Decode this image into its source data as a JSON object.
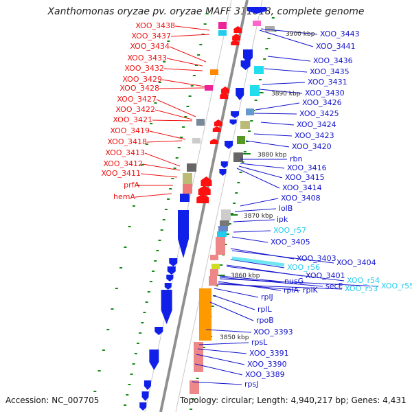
{
  "header": {
    "title": "Xanthomonas oryzae pv. oryzae MAFF 311018, complete genome"
  },
  "footer": {
    "accession": "Accession: NC_007705",
    "topology": "Topology: circular; Length: 4,940,217 bp; Genes: 4,431"
  },
  "colors": {
    "left_label": "#ee1111",
    "right_label": "#1111cc",
    "rna_label": "#22ccee",
    "gene_arrow_blue": "#1020e8",
    "gene_arrow_red": "#ff1010",
    "ticks": "#118811"
  },
  "scale_ticks": [
    "3900 kbp",
    "3890 kbp",
    "3880 kbp",
    "3870 kbp",
    "3860 kbp",
    "3850 kbp"
  ],
  "left_labels": [
    "XOO_3438",
    "XOO_3437",
    "XOO_3434",
    "XOO_3433",
    "XOO_3432",
    "XOO_3429",
    "XOO_3428",
    "XOO_3427",
    "XOO_3422",
    "XOO_3421",
    "XOO_3419",
    "XOO_3418",
    "XOO_3413",
    "XOO_3412",
    "XOO_3411",
    "prfA",
    "hemA"
  ],
  "right_labels": [
    "XOO_3443",
    "XOO_3441",
    "XOO_3436",
    "XOO_3435",
    "XOO_3431",
    "XOO_3430",
    "XOO_3426",
    "XOO_3425",
    "XOO_3424",
    "XOO_3423",
    "XOO_3420",
    "rbn",
    "XOO_3416",
    "XOO_3415",
    "XOO_3414",
    "XOO_3408",
    "lolB",
    "ipk",
    "XOO_r57",
    "XOO_3405",
    "XOO_3403",
    "XOO_3404",
    "XOO_r56",
    "XOO_3401",
    "XOO_r54",
    "nusG",
    "secE",
    "XOO_r55",
    "rplA",
    "rplK",
    "XOO_r53",
    "rplJ",
    "rplL",
    "rpoB",
    "XOO_3393",
    "rpsL",
    "XOO_3391",
    "XOO_3390",
    "XOO_3389",
    "rpsJ"
  ],
  "rna_labels": [
    "XOO_r57",
    "XOO_r56",
    "XOO_r54",
    "XOO_r55",
    "XOO_r53"
  ]
}
